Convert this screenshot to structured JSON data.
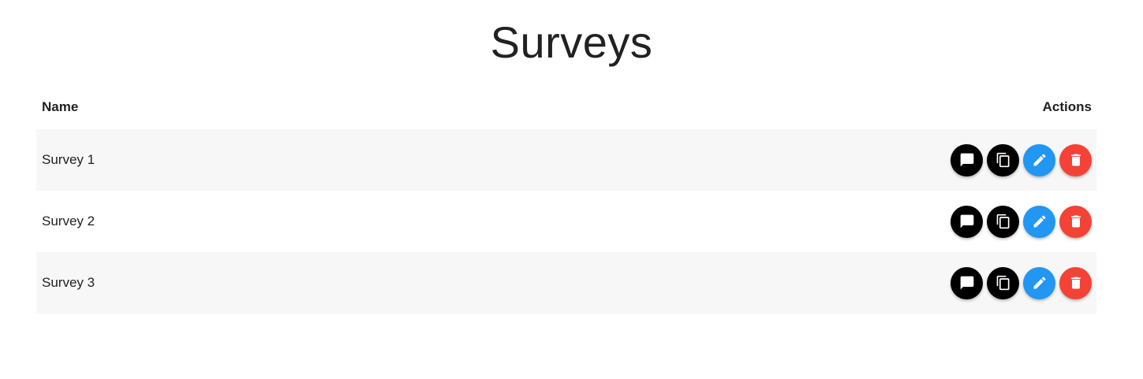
{
  "page": {
    "title": "Surveys"
  },
  "table": {
    "columns": {
      "name": "Name",
      "actions": "Actions"
    },
    "rows": [
      {
        "name": "Survey 1"
      },
      {
        "name": "Survey 2"
      },
      {
        "name": "Survey 3"
      }
    ]
  },
  "actions": [
    {
      "icon": "comment-icon",
      "color": "#000000"
    },
    {
      "icon": "copy-icon",
      "color": "#000000"
    },
    {
      "icon": "pencil-icon",
      "color": "#2196f3"
    },
    {
      "icon": "trash-icon",
      "color": "#f44336"
    }
  ],
  "colors": {
    "row_alt_background": "#f7f7f7",
    "edit_accent": "#2196f3",
    "delete_accent": "#f44336"
  }
}
